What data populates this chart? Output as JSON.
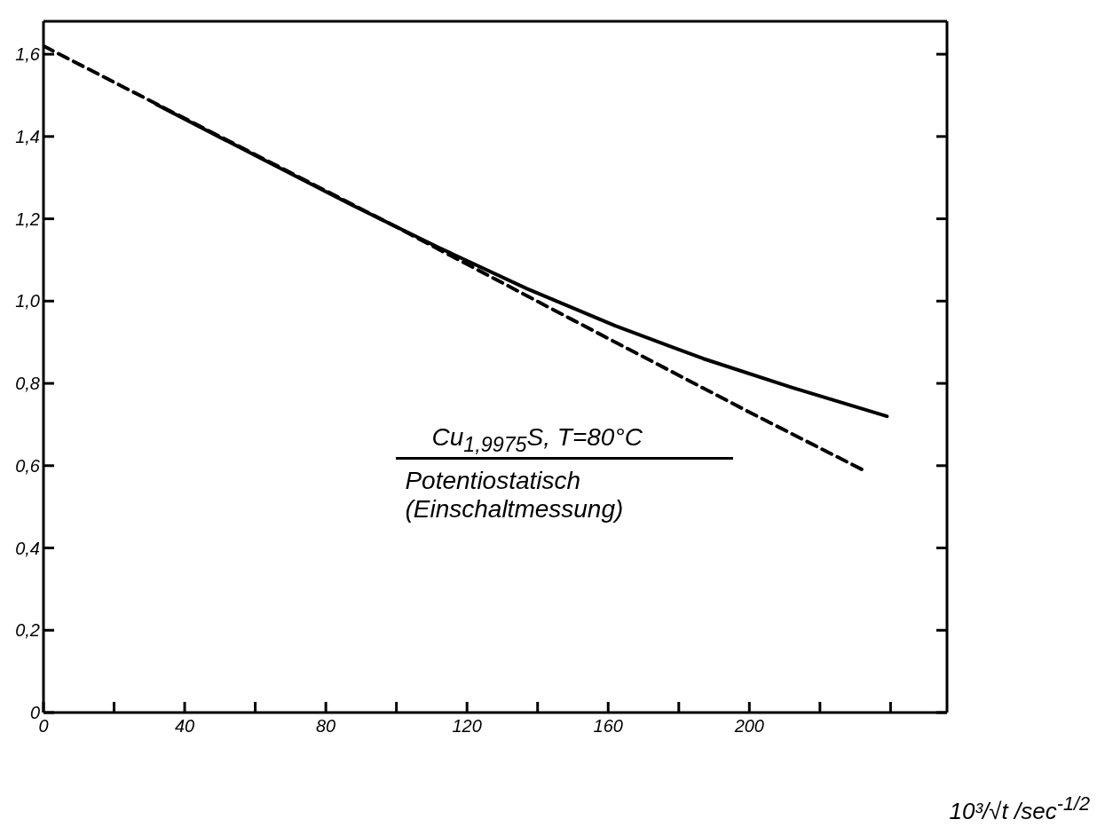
{
  "chart_data": {
    "type": "line",
    "xlabel": "10³/√t /sec$^{-1/2}$",
    "xlim": [
      0,
      256
    ],
    "xticks": [
      0,
      {
        "value": 20,
        "label": null
      },
      40,
      {
        "value": 60,
        "label": null
      },
      80,
      {
        "value": 100,
        "label": null
      },
      120,
      {
        "value": 140,
        "label": null
      },
      160,
      {
        "value": 180,
        "label": null
      },
      200,
      {
        "value": 220,
        "label": null
      },
      {
        "value": 240,
        "label": null
      }
    ],
    "ylim": [
      0,
      1.68
    ],
    "yticks": [
      0,
      {
        "value": 0.2,
        "label": "0,2"
      },
      {
        "value": 0.4,
        "label": "0,4"
      },
      {
        "value": 0.6,
        "label": "0,6"
      },
      {
        "value": 0.8,
        "label": "0,8"
      },
      {
        "value": 1.0,
        "label": "1,0"
      },
      {
        "value": 1.2,
        "label": "1,2"
      },
      {
        "value": 1.4,
        "label": "1,4"
      },
      {
        "value": 1.6,
        "label": "1,6"
      }
    ],
    "series": [
      {
        "color": "#000000",
        "line_style": "solid",
        "x": [
          32,
          62,
          87,
          112,
          137,
          162,
          187,
          212,
          239
        ],
        "values": [
          1.478,
          1.345,
          1.235,
          1.13,
          1.03,
          0.94,
          0.86,
          0.79,
          0.72
        ]
      },
      {
        "color": "#000000",
        "line_style": "dashed",
        "x": [
          0,
          50,
          100,
          150,
          200,
          233
        ],
        "values": [
          1.62,
          1.4,
          1.18,
          0.954,
          0.73,
          0.586
        ]
      }
    ],
    "annotations": [
      "Cu$_{1,9975}$S,  T=80°C",
      "Potentiostatisch",
      "(Einschaltmessung)"
    ],
    "marker": "none"
  }
}
